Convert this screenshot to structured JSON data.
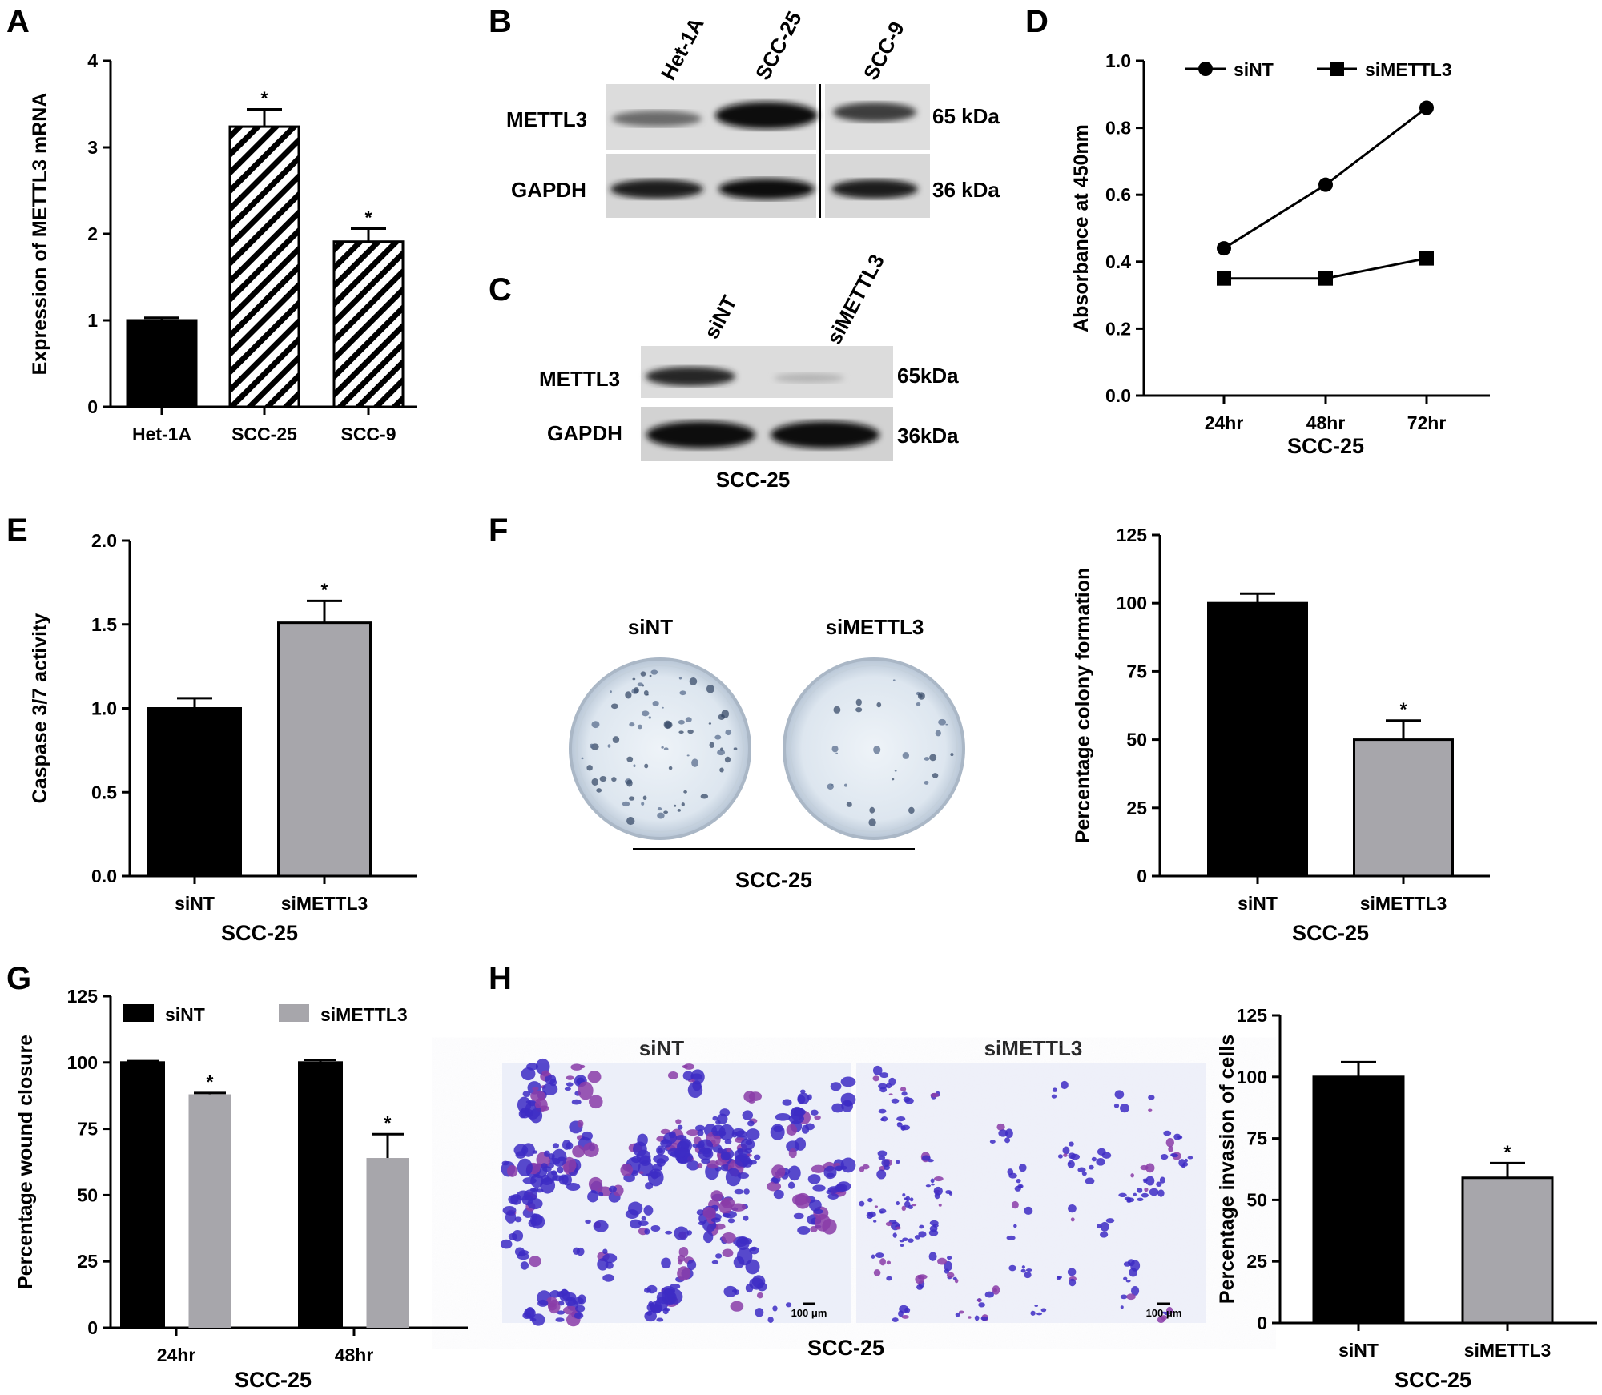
{
  "figure": {
    "panels": {
      "A": "A",
      "B": "B",
      "C": "C",
      "D": "D",
      "E": "E",
      "F": "F",
      "G": "G",
      "H": "H"
    }
  },
  "colors": {
    "black": "#000000",
    "gray": "#a7a6ab",
    "membrane_bg": "#d9d9d9",
    "plate_tint": "#e3ebf2",
    "crystal_violet": "#4a33c8"
  },
  "blot_B": {
    "lanes": [
      "Het-1A",
      "SCC-25",
      "SCC-9"
    ],
    "rows": [
      {
        "protein": "METTL3",
        "size": "65 kDa"
      },
      {
        "protein": "GAPDH",
        "size": "36 kDa"
      }
    ]
  },
  "blot_C": {
    "lanes": [
      "siNT",
      "siMETTL3"
    ],
    "rows": [
      {
        "protein": "METTL3",
        "size": "65kDa"
      },
      {
        "protein": "GAPDH",
        "size": "36kDa"
      }
    ],
    "group": "SCC-25"
  },
  "colony_F": {
    "plates": [
      "siNT",
      "siMETTL3"
    ],
    "group": "SCC-25"
  },
  "transwell_H": {
    "fields": [
      "siNT",
      "siMETTL3"
    ],
    "scale_bar": "100 μm",
    "group": "SCC-25"
  },
  "chart_data": [
    {
      "id": "A",
      "type": "bar",
      "categories": [
        "Het-1A",
        "SCC-25",
        "SCC-9"
      ],
      "values": [
        1.0,
        3.24,
        1.91
      ],
      "errors": [
        0.03,
        0.2,
        0.15
      ],
      "significance": [
        "",
        "*",
        "*"
      ],
      "fills": [
        "solid",
        "hatched",
        "hatched"
      ],
      "ylabel": "Expression of METTL3 mRNA",
      "xlabel": "",
      "ylim": [
        0,
        4
      ],
      "yticks": [
        "0",
        "1",
        "2",
        "3",
        "4"
      ]
    },
    {
      "id": "D",
      "type": "line",
      "x": [
        "24hr",
        "48hr",
        "72hr"
      ],
      "series": [
        {
          "name": "siNT",
          "marker": "circle",
          "values": [
            0.44,
            0.63,
            0.86
          ]
        },
        {
          "name": "siMETTL3",
          "marker": "square",
          "values": [
            0.35,
            0.35,
            0.41
          ]
        }
      ],
      "ylabel": "Absorbance at 450nm",
      "xlabel": "SCC-25",
      "ylim": [
        0,
        1.0
      ],
      "yticks": [
        "0.0",
        "0.2",
        "0.4",
        "0.6",
        "0.8",
        "1.0"
      ],
      "legend": "top"
    },
    {
      "id": "E",
      "type": "bar",
      "categories": [
        "siNT",
        "siMETTL3"
      ],
      "values": [
        1.0,
        1.51
      ],
      "errors": [
        0.06,
        0.13
      ],
      "significance": [
        "",
        "*"
      ],
      "ylabel": "Caspase 3/7 activity",
      "xlabel": "SCC-25",
      "ylim": [
        0,
        2.0
      ],
      "yticks": [
        "0.0",
        "0.5",
        "1.0",
        "1.5",
        "2.0"
      ]
    },
    {
      "id": "F",
      "type": "bar",
      "categories": [
        "siNT",
        "siMETTL3"
      ],
      "values": [
        100,
        50
      ],
      "errors": [
        3.5,
        7
      ],
      "significance": [
        "",
        "*"
      ],
      "ylabel": "Percentage colony formation",
      "xlabel": "SCC-25",
      "ylim": [
        0,
        125
      ],
      "yticks": [
        "0",
        "25",
        "50",
        "75",
        "100",
        "125"
      ]
    },
    {
      "id": "G",
      "type": "bar",
      "categories": [
        "24hr",
        "48hr"
      ],
      "series": [
        {
          "name": "siNT",
          "values": [
            100,
            100
          ],
          "errors": [
            0.5,
            1
          ]
        },
        {
          "name": "siMETTL3",
          "values": [
            88,
            64
          ],
          "errors": [
            0.5,
            9
          ]
        }
      ],
      "significance": [
        [
          "",
          "*"
        ],
        [
          "",
          "*"
        ]
      ],
      "ylabel": "Percentage wound closure",
      "xlabel": "SCC-25",
      "ylim": [
        0,
        125
      ],
      "yticks": [
        "0",
        "25",
        "50",
        "75",
        "100",
        "125"
      ],
      "legend": "top"
    },
    {
      "id": "H",
      "type": "bar",
      "categories": [
        "siNT",
        "siMETTL3"
      ],
      "values": [
        100,
        59
      ],
      "errors": [
        6,
        6
      ],
      "significance": [
        "",
        "*"
      ],
      "ylabel": "Percentage invasion of cells",
      "xlabel": "SCC-25",
      "ylim": [
        0,
        125
      ],
      "yticks": [
        "0",
        "25",
        "50",
        "75",
        "100",
        "125"
      ]
    }
  ]
}
